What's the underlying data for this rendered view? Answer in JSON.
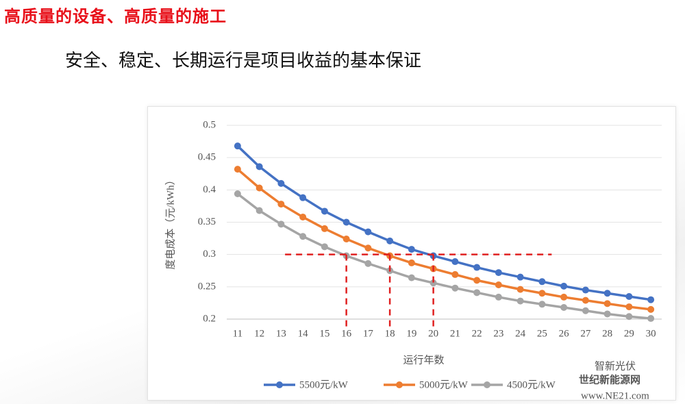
{
  "title": "高质量的设备、高质量的施工",
  "subtitle": "安全、稳定、长期运行是项目收益的基本保证",
  "chart_data": {
    "type": "line",
    "ylabel": "度电成本（元/kWh）",
    "xlabel": "运行年数",
    "categories": [
      11,
      12,
      13,
      14,
      15,
      16,
      17,
      18,
      19,
      20,
      21,
      22,
      23,
      24,
      25,
      26,
      27,
      28,
      29,
      30
    ],
    "series": [
      {
        "name": "5500元/kW",
        "color": "#4472c4",
        "values": [
          0.468,
          0.436,
          0.41,
          0.388,
          0.367,
          0.35,
          0.335,
          0.321,
          0.308,
          0.298,
          0.289,
          0.28,
          0.272,
          0.265,
          0.258,
          0.251,
          0.245,
          0.24,
          0.235,
          0.23
        ]
      },
      {
        "name": "5000元/kW",
        "color": "#ed7d31",
        "values": [
          0.432,
          0.403,
          0.378,
          0.358,
          0.34,
          0.324,
          0.31,
          0.298,
          0.287,
          0.278,
          0.269,
          0.26,
          0.253,
          0.246,
          0.24,
          0.234,
          0.229,
          0.224,
          0.219,
          0.215
        ]
      },
      {
        "name": "4500元/kW",
        "color": "#a5a5a5",
        "values": [
          0.394,
          0.368,
          0.347,
          0.328,
          0.312,
          0.298,
          0.286,
          0.275,
          0.264,
          0.256,
          0.248,
          0.241,
          0.234,
          0.228,
          0.223,
          0.218,
          0.213,
          0.208,
          0.204,
          0.201
        ]
      }
    ],
    "ylim": [
      0.2,
      0.5
    ],
    "yticks": [
      0.2,
      0.25,
      0.3,
      0.35,
      0.4,
      0.45,
      0.5
    ],
    "grid": true,
    "reference_y": 0.3,
    "reference_x": [
      16,
      18,
      20
    ],
    "reference_color": "#e02020",
    "legend": "bottom"
  },
  "watermarks": [
    "智新光伏",
    "世纪新能源网",
    "www.NE21.com"
  ]
}
